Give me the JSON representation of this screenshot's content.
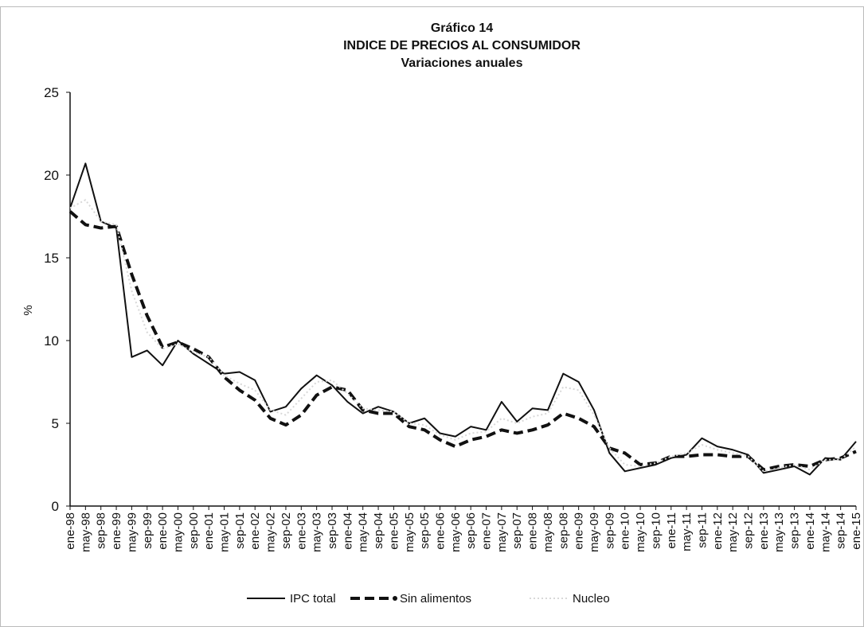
{
  "chart_data": {
    "type": "line",
    "title": "Gráfico 14",
    "subtitle": "INDICE DE PRECIOS AL CONSUMIDOR",
    "subtitle2": "Variaciones anuales",
    "y_label": "%",
    "categories": [
      "ene-98",
      "may-98",
      "sep-98",
      "ene-99",
      "may-99",
      "sep-99",
      "ene-00",
      "may-00",
      "sep-00",
      "ene-01",
      "may-01",
      "sep-01",
      "ene-02",
      "may-02",
      "sep-02",
      "ene-03",
      "may-03",
      "sep-03",
      "ene-04",
      "may-04",
      "sep-04",
      "ene-05",
      "may-05",
      "sep-05",
      "ene-06",
      "may-06",
      "sep-06",
      "ene-07",
      "may-07",
      "sep-07",
      "ene-08",
      "may-08",
      "sep-08",
      "ene-09",
      "may-09",
      "sep-09",
      "ene-10",
      "may-10",
      "sep-10",
      "ene-11",
      "may-11",
      "sep-11",
      "ene-12",
      "may-12",
      "sep-12",
      "ene-13",
      "may-13",
      "sep-13",
      "ene-14",
      "may-14",
      "sep-14",
      "ene-15"
    ],
    "series": [
      {
        "name": "IPC total",
        "color": "#111111",
        "style": "solid",
        "values": [
          18.0,
          20.7,
          17.2,
          16.8,
          9.0,
          9.4,
          8.5,
          10.0,
          9.2,
          8.6,
          8.0,
          8.1,
          7.6,
          5.7,
          6.0,
          7.1,
          7.9,
          7.3,
          6.3,
          5.6,
          6.0,
          5.7,
          5.0,
          5.3,
          4.4,
          4.2,
          4.8,
          4.6,
          6.3,
          5.1,
          5.9,
          5.8,
          8.0,
          7.5,
          5.8,
          3.2,
          2.1,
          2.3,
          2.5,
          2.9,
          3.1,
          4.1,
          3.6,
          3.4,
          3.1,
          2.0,
          2.2,
          2.4,
          1.9,
          2.9,
          2.8,
          3.9
        ]
      },
      {
        "name": "Sin alimentos",
        "color": "#111111",
        "style": "dashed",
        "values": [
          17.8,
          17.0,
          16.8,
          16.9,
          14.0,
          11.5,
          9.6,
          9.9,
          9.5,
          9.0,
          7.8,
          7.0,
          6.4,
          5.3,
          4.9,
          5.5,
          6.7,
          7.2,
          7.0,
          5.8,
          5.6,
          5.6,
          4.8,
          4.6,
          4.0,
          3.6,
          4.0,
          4.2,
          4.6,
          4.4,
          4.6,
          4.9,
          5.6,
          5.3,
          4.8,
          3.5,
          3.2,
          2.5,
          2.6,
          3.0,
          3.0,
          3.1,
          3.1,
          3.0,
          3.0,
          2.2,
          2.4,
          2.5,
          2.4,
          2.8,
          2.9,
          3.3
        ]
      },
      {
        "name": "Nucleo",
        "color": "#d8d8d8",
        "style": "dotted",
        "values": [
          18.0,
          18.5,
          17.2,
          17.0,
          13.0,
          10.5,
          9.5,
          9.8,
          9.3,
          9.0,
          7.9,
          7.4,
          7.0,
          5.8,
          5.5,
          6.5,
          7.5,
          7.6,
          6.8,
          5.9,
          5.8,
          5.7,
          5.0,
          4.9,
          4.3,
          4.0,
          4.4,
          4.5,
          5.3,
          5.0,
          5.4,
          5.6,
          7.2,
          7.0,
          5.5,
          3.5,
          2.5,
          2.4,
          2.6,
          3.0,
          3.2,
          3.7,
          3.4,
          3.2,
          3.0,
          2.1,
          2.3,
          2.5,
          2.2,
          2.8,
          2.8,
          3.6
        ]
      }
    ],
    "ylim": [
      0,
      25
    ],
    "yticks": [
      0,
      5,
      10,
      15,
      20,
      25
    ],
    "grid": false
  }
}
